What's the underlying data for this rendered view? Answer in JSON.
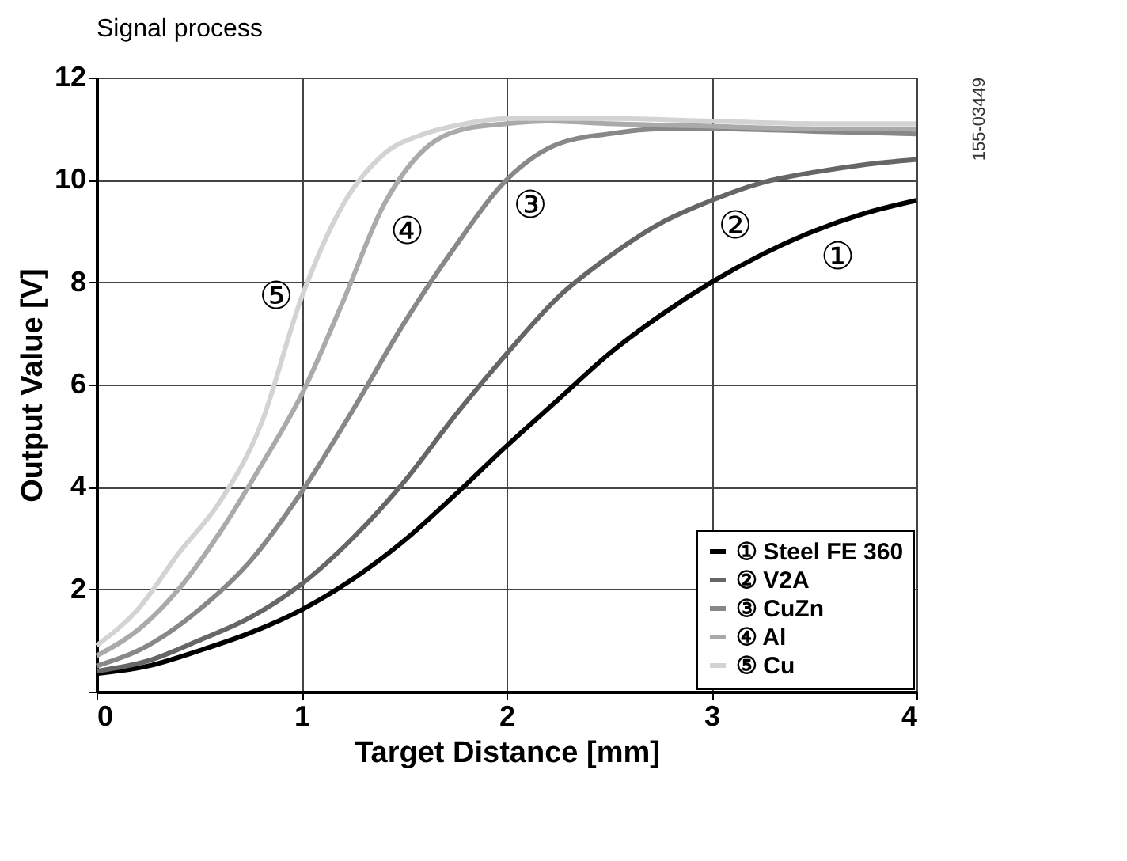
{
  "chart_data": {
    "type": "line",
    "title": "Signal process",
    "xlabel": "Target Distance [mm]",
    "ylabel": "Output Value [V]",
    "xlim": [
      0,
      4
    ],
    "ylim": [
      0,
      12
    ],
    "xticks": [
      0,
      1,
      2,
      3,
      4
    ],
    "yticks": [
      {
        "value": 0,
        "label": null
      },
      2,
      4,
      6,
      8,
      10,
      12
    ],
    "grid": true,
    "legend": "bottom right",
    "line_style": "solid",
    "marker": "none",
    "series": [
      {
        "name": "① Steel FE 360",
        "color": "#000000",
        "x": [
          0,
          0.25,
          0.5,
          0.75,
          1,
          1.25,
          1.5,
          1.75,
          2,
          2.25,
          2.5,
          2.75,
          3,
          3.25,
          3.5,
          3.75,
          4
        ],
        "values": [
          0.35,
          0.5,
          0.8,
          1.15,
          1.6,
          2.2,
          2.95,
          3.85,
          4.8,
          5.7,
          6.6,
          7.35,
          8.0,
          8.55,
          9.0,
          9.35,
          9.6
        ]
      },
      {
        "name": "② V2A",
        "color": "#666666",
        "x": [
          0,
          0.25,
          0.5,
          0.75,
          1,
          1.25,
          1.5,
          1.75,
          2,
          2.25,
          2.5,
          2.75,
          3,
          3.25,
          3.5,
          3.75,
          4
        ],
        "values": [
          0.4,
          0.6,
          1.0,
          1.45,
          2.1,
          3.0,
          4.1,
          5.4,
          6.6,
          7.7,
          8.5,
          9.15,
          9.6,
          9.95,
          10.15,
          10.3,
          10.4
        ]
      },
      {
        "name": "③ CuZn",
        "color": "#888888",
        "x": [
          0,
          0.25,
          0.5,
          0.75,
          1,
          1.25,
          1.5,
          1.75,
          2,
          2.25,
          2.5,
          2.75,
          3,
          3.5,
          4
        ],
        "values": [
          0.5,
          0.9,
          1.6,
          2.55,
          3.9,
          5.5,
          7.2,
          8.7,
          10.0,
          10.7,
          10.9,
          11.0,
          11.0,
          10.95,
          10.9
        ]
      },
      {
        "name": "④ Al",
        "color": "#aaaaaa",
        "x": [
          0,
          0.2,
          0.4,
          0.6,
          0.8,
          1,
          1.2,
          1.4,
          1.6,
          1.8,
          2,
          2.2,
          2.5,
          3,
          3.5,
          4
        ],
        "values": [
          0.7,
          1.2,
          2.0,
          3.1,
          4.4,
          5.8,
          7.6,
          9.5,
          10.6,
          11.0,
          11.1,
          11.15,
          11.1,
          11.05,
          11.0,
          11.0
        ]
      },
      {
        "name": "⑤ Cu",
        "color": "#d3d3d3",
        "x": [
          0,
          0.2,
          0.4,
          0.6,
          0.8,
          1,
          1.2,
          1.4,
          1.6,
          1.8,
          2,
          2.2,
          2.5,
          3,
          3.5,
          4
        ],
        "values": [
          0.9,
          1.6,
          2.7,
          3.7,
          5.2,
          7.7,
          9.5,
          10.5,
          10.9,
          11.1,
          11.2,
          11.2,
          11.2,
          11.15,
          11.1,
          11.1
        ]
      }
    ],
    "annotations": [
      {
        "text": "①",
        "x": 3.5,
        "y": 9.0
      },
      {
        "text": "②",
        "x": 3,
        "y": 9.6
      },
      {
        "text": "③",
        "x": 2,
        "y": 10.0
      },
      {
        "text": "④",
        "x": 1.4,
        "y": 9.5
      },
      {
        "text": "⑤",
        "x": 1,
        "y": 7.7
      },
      "155-03449"
    ]
  }
}
